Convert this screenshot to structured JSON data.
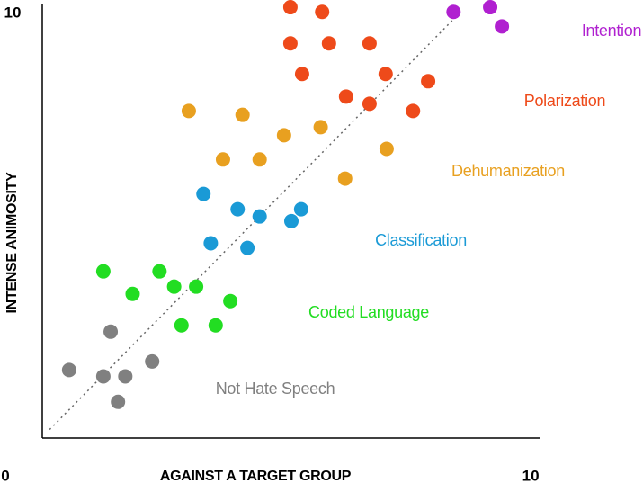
{
  "chart_data": {
    "type": "scatter",
    "x_label": "AGAINST A TARGET GROUP",
    "y_label": "INTENSE ANIMOSITY",
    "xlim": [
      0,
      10.2
    ],
    "ylim": [
      0,
      10.3
    ],
    "xticks": [
      0,
      10
    ],
    "yticks": [
      10
    ],
    "reference_line": {
      "x": [
        0.15,
        8.55
      ],
      "y": [
        0.2,
        10
      ]
    },
    "series": [
      {
        "name": "Not Hate Speech",
        "color": "#808080",
        "x": [
          0.55,
          1.25,
          1.7,
          1.55,
          1.4,
          2.25
        ],
        "y": [
          1.6,
          1.45,
          1.45,
          0.85,
          2.5,
          1.8
        ]
      },
      {
        "name": "Coded Language",
        "color": "#22dd22",
        "x": [
          1.25,
          2.4,
          1.85,
          2.7,
          3.15,
          3.85,
          2.85,
          3.55
        ],
        "y": [
          3.92,
          3.92,
          3.39,
          3.56,
          3.56,
          3.22,
          2.65,
          2.65
        ]
      },
      {
        "name": "Classification",
        "color": "#1a9ad6",
        "x": [
          3.3,
          4.0,
          4.45,
          3.45,
          4.2,
          5.1,
          5.3
        ],
        "y": [
          5.74,
          5.38,
          5.21,
          4.58,
          4.47,
          5.1,
          5.38
        ]
      },
      {
        "name": "Dehumanization",
        "color": "#e8a020",
        "x": [
          3.0,
          4.1,
          4.95,
          5.7,
          3.7,
          4.45,
          6.2,
          7.05
        ],
        "y": [
          7.69,
          7.6,
          7.12,
          7.31,
          6.55,
          6.55,
          6.1,
          6.8
        ]
      },
      {
        "name": "Polarization",
        "color": "#ee4a1a",
        "x": [
          5.08,
          5.73,
          5.08,
          5.87,
          6.7,
          5.32,
          7.03,
          7.9,
          6.22,
          6.7,
          7.59
        ],
        "y": [
          10.13,
          10.02,
          9.28,
          9.28,
          9.28,
          8.56,
          8.56,
          8.39,
          8.03,
          7.86,
          7.69
        ]
      },
      {
        "name": "Intention",
        "color": "#b020d0",
        "x": [
          8.42,
          9.17,
          9.41
        ],
        "y": [
          10.02,
          10.13,
          9.68
        ]
      }
    ]
  }
}
